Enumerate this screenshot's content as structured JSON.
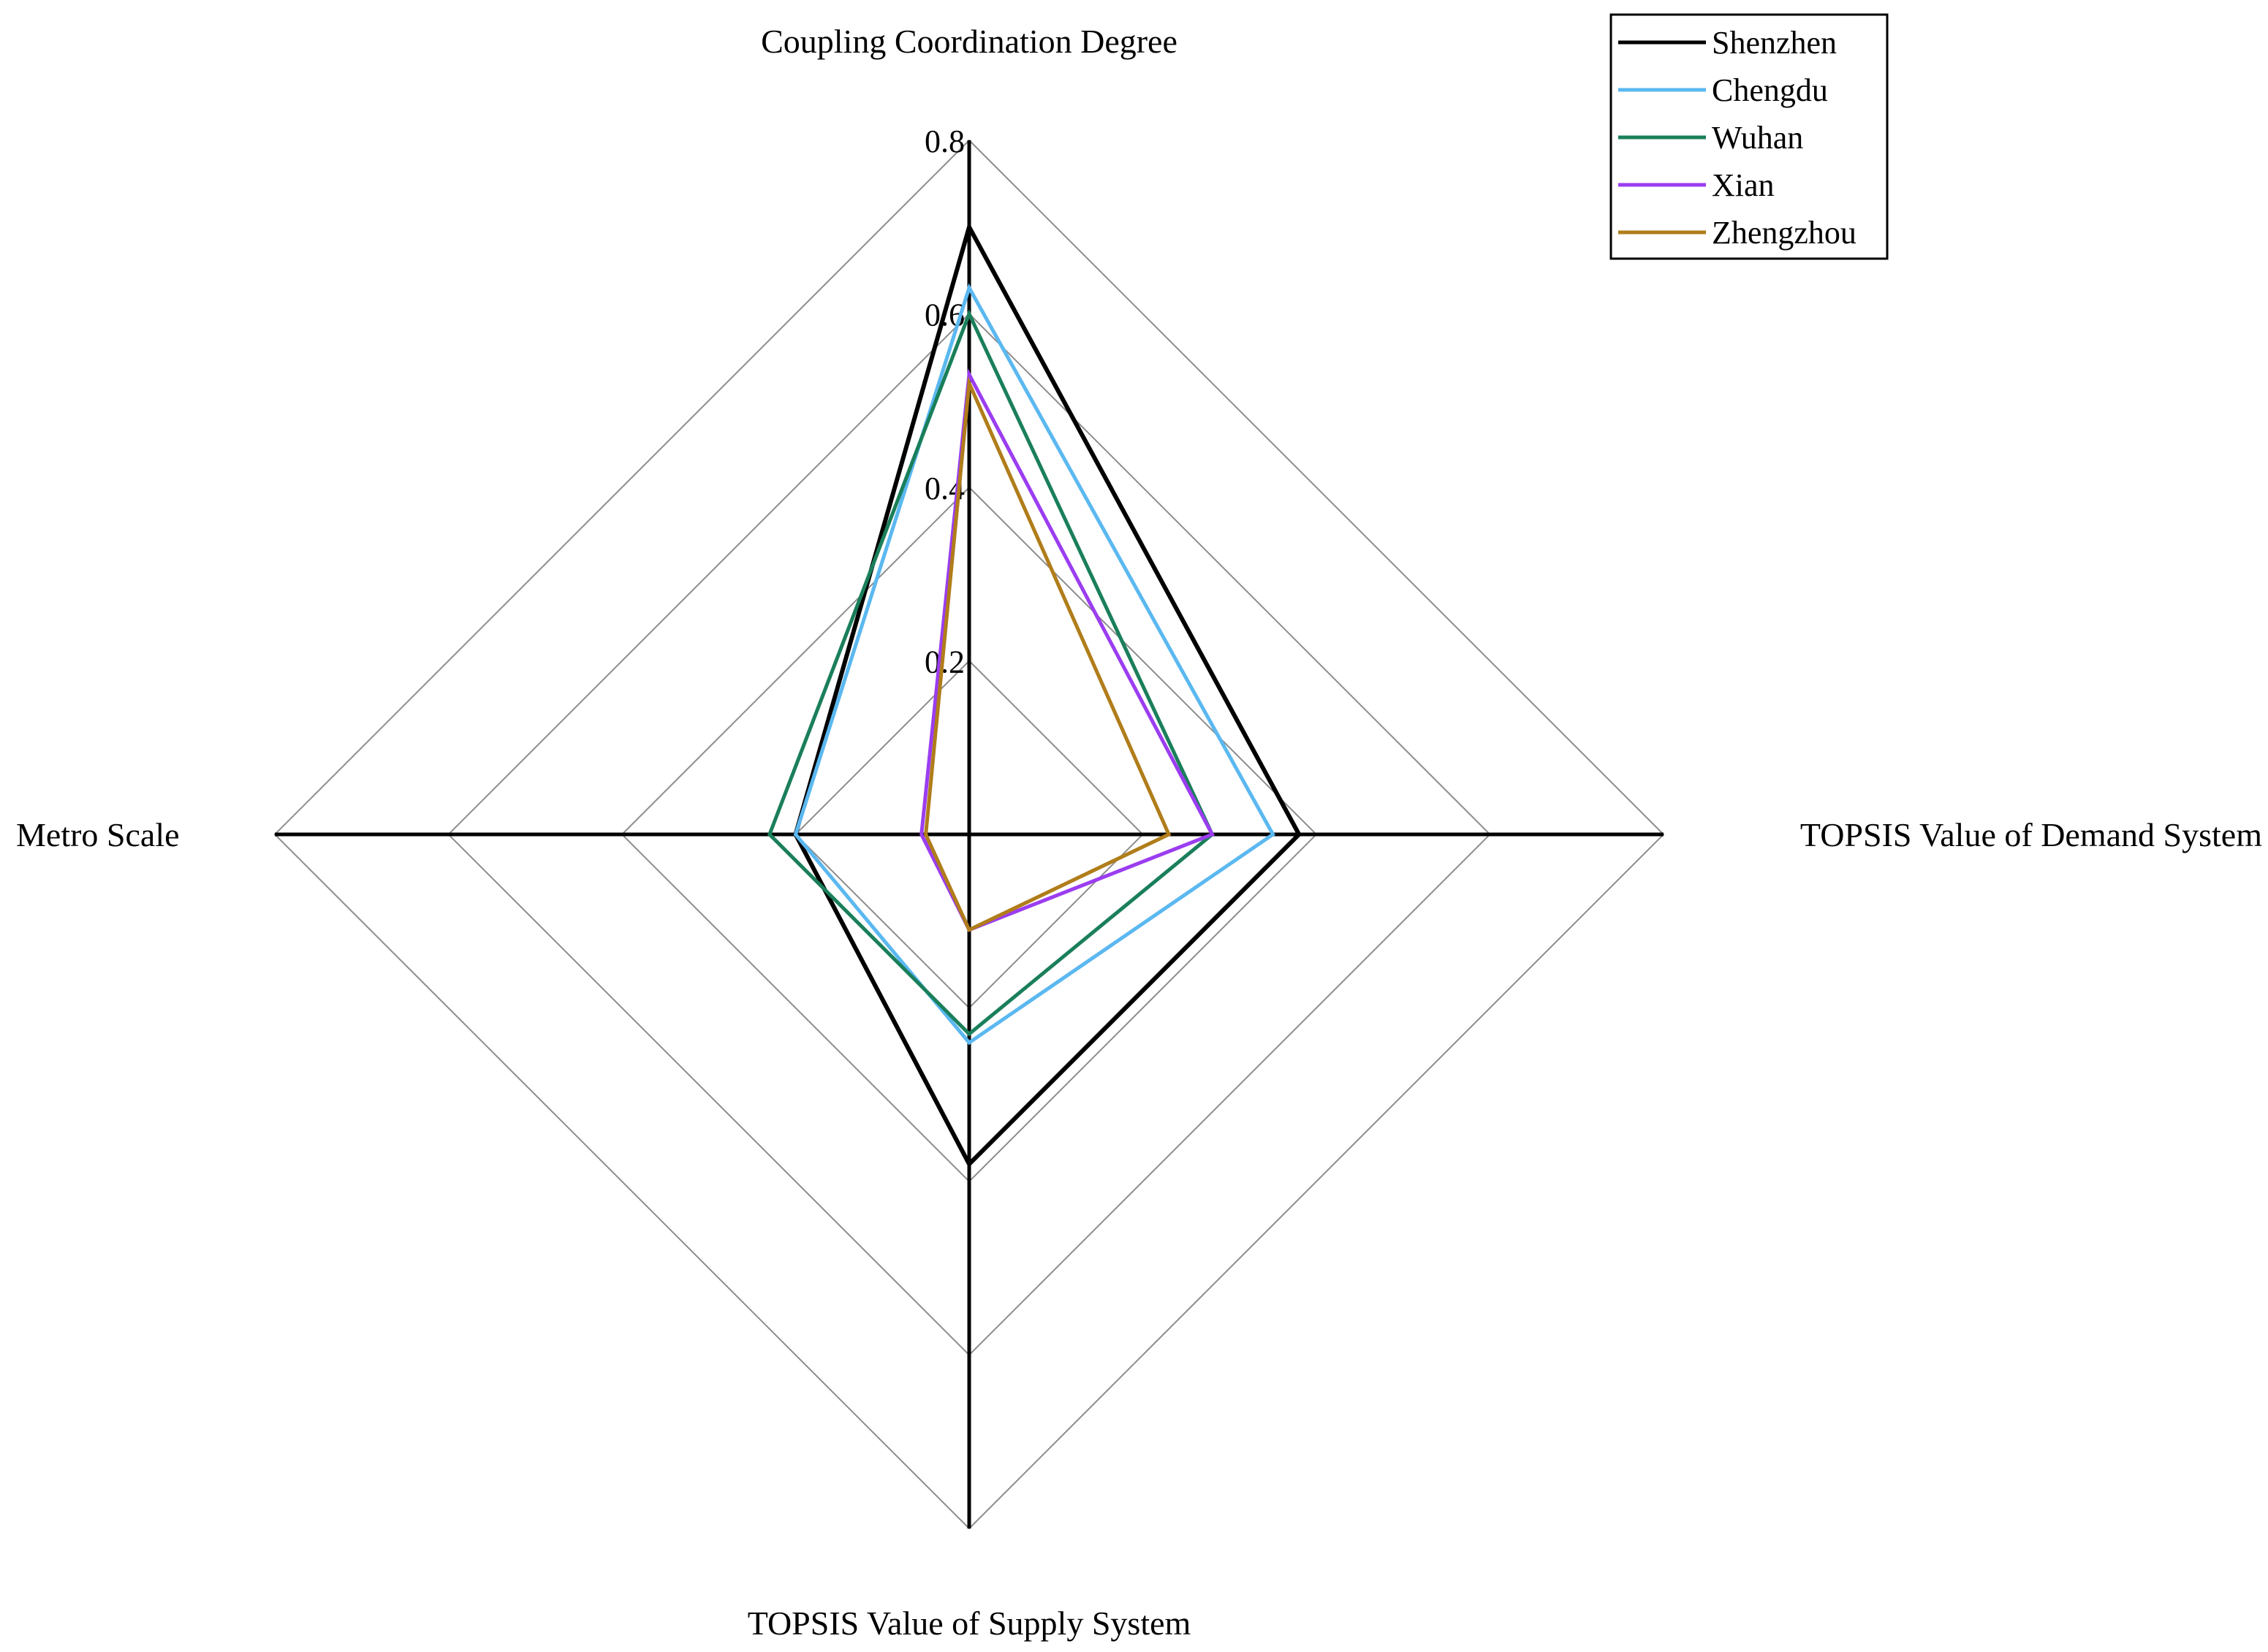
{
  "chart_data": {
    "type": "radar",
    "axes": [
      "Coupling Coordination Degree",
      "TOPSIS Value of Demand System",
      "TOPSIS Value of Supply System",
      "Metro Scale"
    ],
    "range": [
      0,
      0.8
    ],
    "ticks": [
      0,
      0.2,
      0.4,
      0.6,
      0.8
    ],
    "tick_labels": [
      "",
      "0.2",
      "0.4",
      "0.6",
      "0.8"
    ],
    "legend_position": "top-right",
    "series": [
      {
        "name": "Shenzhen",
        "color": "#000000",
        "values": [
          0.7,
          0.38,
          0.38,
          0.2
        ]
      },
      {
        "name": "Chengdu",
        "color": "#5bb8f0",
        "values": [
          0.63,
          0.35,
          0.24,
          0.2
        ]
      },
      {
        "name": "Wuhan",
        "color": "#1a7f5a",
        "values": [
          0.6,
          0.28,
          0.23,
          0.23
        ]
      },
      {
        "name": "Xian",
        "color": "#9b3df0",
        "values": [
          0.53,
          0.28,
          0.11,
          0.055
        ]
      },
      {
        "name": "Zhengzhou",
        "color": "#b07d1a",
        "values": [
          0.52,
          0.23,
          0.11,
          0.05
        ]
      }
    ]
  }
}
